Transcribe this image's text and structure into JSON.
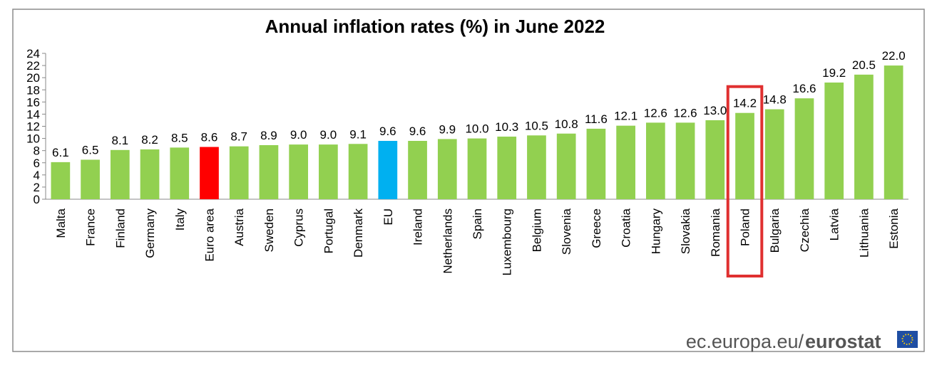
{
  "chart_data": {
    "type": "bar",
    "title": "Annual inflation rates (%) in June 2022",
    "categories": [
      "Malta",
      "France",
      "Finland",
      "Germany",
      "Italy",
      "Euro area",
      "Austria",
      "Sweden",
      "Cyprus",
      "Portugal",
      "Denmark",
      "EU",
      "Ireland",
      "Netherlands",
      "Spain",
      "Luxembourg",
      "Belgium",
      "Slovenia",
      "Greece",
      "Croatia",
      "Hungary",
      "Slovakia",
      "Romania",
      "Poland",
      "Bulgaria",
      "Czechia",
      "Latvia",
      "Lithuania",
      "Estonia"
    ],
    "values": [
      6.1,
      6.5,
      8.1,
      8.2,
      8.5,
      8.6,
      8.7,
      8.9,
      9.0,
      9.0,
      9.1,
      9.6,
      9.6,
      9.9,
      10.0,
      10.3,
      10.5,
      10.8,
      11.6,
      12.1,
      12.6,
      12.6,
      13.0,
      14.2,
      14.8,
      16.6,
      19.2,
      20.5,
      22.0
    ],
    "value_labels": [
      "6.1",
      "6.5",
      "8.1",
      "8.2",
      "8.5",
      "8.6",
      "8.7",
      "8.9",
      "9.0",
      "9.0",
      "9.1",
      "9.6",
      "9.6",
      "9.9",
      "10.0",
      "10.3",
      "10.5",
      "10.8",
      "11.6",
      "12.1",
      "12.6",
      "12.6",
      "13.0",
      "14.2",
      "14.8",
      "16.6",
      "19.2",
      "20.5",
      "22.0"
    ],
    "colors": [
      "#92d050",
      "#92d050",
      "#92d050",
      "#92d050",
      "#92d050",
      "#ff0000",
      "#92d050",
      "#92d050",
      "#92d050",
      "#92d050",
      "#92d050",
      "#00b0f0",
      "#92d050",
      "#92d050",
      "#92d050",
      "#92d050",
      "#92d050",
      "#92d050",
      "#92d050",
      "#92d050",
      "#92d050",
      "#92d050",
      "#92d050",
      "#92d050",
      "#92d050",
      "#92d050",
      "#92d050",
      "#92d050",
      "#92d050"
    ],
    "ylim": [
      0,
      24
    ],
    "yticks": [
      0,
      2,
      4,
      6,
      8,
      10,
      12,
      14,
      16,
      18,
      20,
      22,
      24
    ],
    "grid": false,
    "highlight": "Poland",
    "highlight_color": "#e03030",
    "source": {
      "site": "ec.europa.eu/",
      "brand": "eurostat"
    }
  }
}
